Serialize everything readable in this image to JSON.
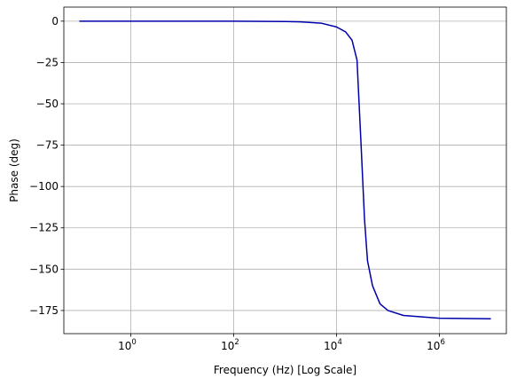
{
  "chart_data": {
    "type": "line",
    "title": "",
    "xlabel": "Frequency (Hz) [Log Scale]",
    "ylabel": "Phase (deg)",
    "x_scale": "log",
    "xlim": [
      0.05,
      20000000
    ],
    "ylim": [
      -189,
      8.5
    ],
    "grid": true,
    "line_color": "#0000aa",
    "x_ticks": [
      {
        "value": 1,
        "base": "10",
        "exp": "0"
      },
      {
        "value": 100,
        "base": "10",
        "exp": "2"
      },
      {
        "value": 10000,
        "base": "10",
        "exp": "4"
      },
      {
        "value": 1000000,
        "base": "10",
        "exp": "6"
      }
    ],
    "y_ticks": [
      {
        "value": 0,
        "label": "0"
      },
      {
        "value": -25,
        "label": "−25"
      },
      {
        "value": -50,
        "label": "−50"
      },
      {
        "value": -75,
        "label": "−75"
      },
      {
        "value": -100,
        "label": "−100"
      },
      {
        "value": -125,
        "label": "−125"
      },
      {
        "value": -150,
        "label": "−150"
      },
      {
        "value": -175,
        "label": "−175"
      }
    ],
    "series": [
      {
        "x": [
          0.1,
          1,
          10,
          100,
          1000,
          2000,
          5000,
          10000,
          15000,
          20000,
          25000,
          30000,
          35000,
          40000,
          50000,
          70000,
          100000,
          200000,
          1000000,
          10000000
        ],
        "y": [
          0,
          0,
          0,
          0,
          -0.2,
          -0.4,
          -1.2,
          -3.5,
          -6.5,
          -11.5,
          -23.5,
          -75,
          -120,
          -145,
          -160,
          -171,
          -175,
          -178,
          -179.7,
          -180
        ]
      }
    ]
  }
}
